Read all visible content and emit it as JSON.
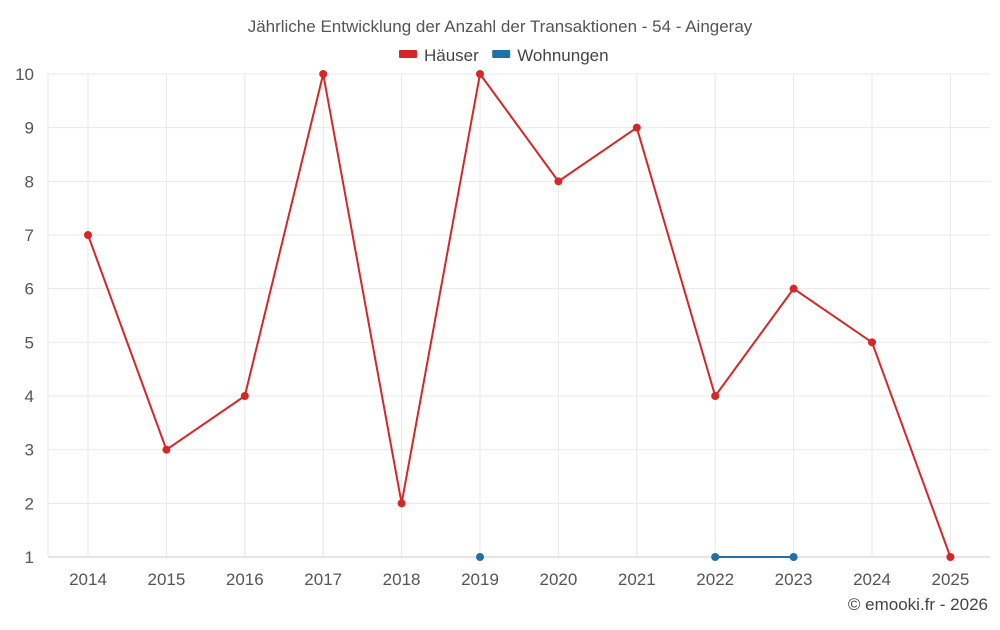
{
  "chart_data": {
    "type": "line",
    "title": "Jährliche Entwicklung der Anzahl der Transaktionen - 54 - Aingeray",
    "x": [
      "2014",
      "2015",
      "2016",
      "2017",
      "2018",
      "2019",
      "2020",
      "2021",
      "2022",
      "2023",
      "2024",
      "2025"
    ],
    "ylim": [
      1,
      10
    ],
    "yticks": [
      1,
      2,
      3,
      4,
      5,
      6,
      7,
      8,
      9,
      10
    ],
    "grid": true,
    "legend_position": "top-center",
    "series": [
      {
        "name": "Häuser",
        "color": "#d62728",
        "values": [
          7,
          3,
          4,
          10,
          2,
          10,
          8,
          9,
          4,
          6,
          5,
          1
        ]
      },
      {
        "name": "Wohnungen",
        "color": "#1f6fa8",
        "values": [
          null,
          null,
          null,
          null,
          null,
          1,
          null,
          null,
          1,
          1,
          null,
          null
        ]
      }
    ]
  },
  "credit": "© emooki.fr - 2026"
}
